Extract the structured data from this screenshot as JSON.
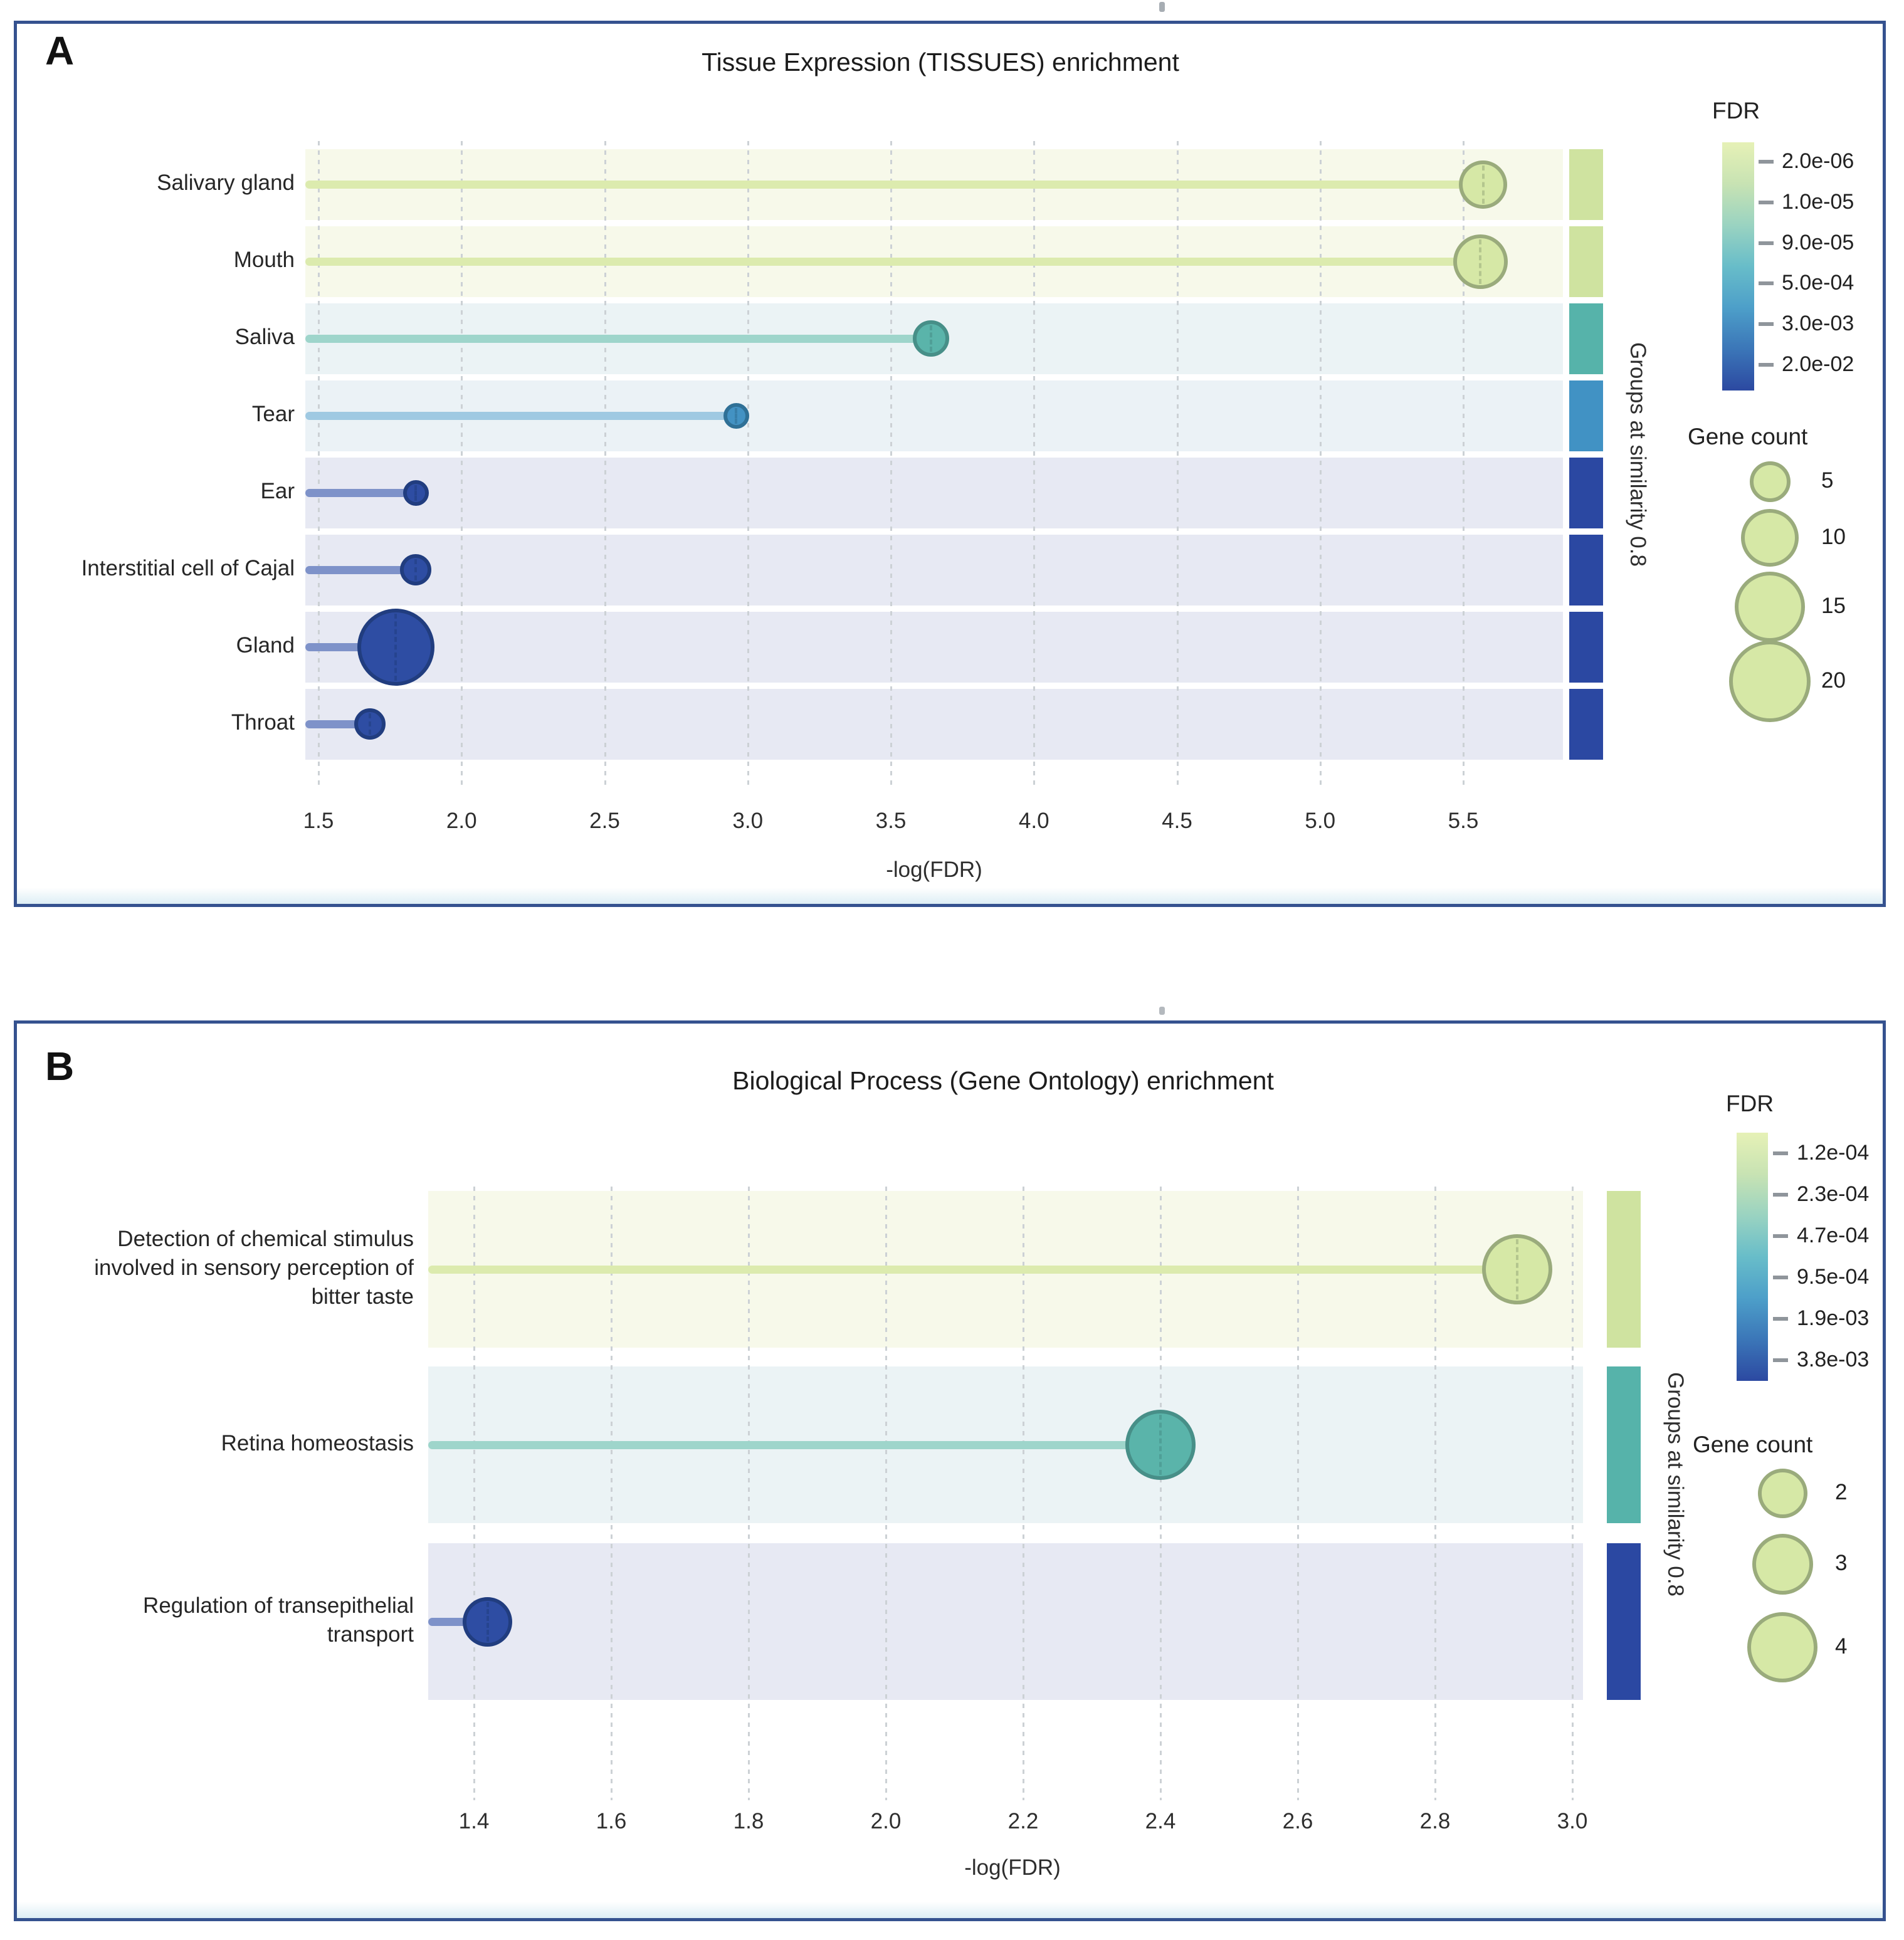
{
  "figure": {
    "panel_a_letter": "A",
    "panel_b_letter": "B"
  },
  "colors": {
    "panel_border": "#35528f",
    "grid": "#ccd1d5",
    "legend_circle_fill": "#d6e8a6",
    "legend_circle_border": "#9aab7c",
    "gradient": [
      "#e6f1b6",
      "#c8e3b3",
      "#9ad3c1",
      "#68bdc9",
      "#4d9fc9",
      "#3b76b8",
      "#2c49a1"
    ],
    "groups": {
      "green": {
        "band": "#f7f9ea",
        "stick": "#dcebae",
        "bubble_fill": "#d6e8a6",
        "bubble_border": "#9aab7c",
        "sidebar": "#cfe3a0"
      },
      "teal": {
        "band": "#ebf3f5",
        "stick": "#9ed5cb",
        "bubble_fill": "#5ab4aa",
        "bubble_border": "#478f88",
        "sidebar": "#56b3aa"
      },
      "blue_mid": {
        "band": "#ebf2f6",
        "stick": "#9fc9e2",
        "bubble_fill": "#4392c3",
        "bubble_border": "#2f7096",
        "sidebar": "#4192c4"
      },
      "blue_dark": {
        "band": "#e7e9f3",
        "stick": "#7e92c9",
        "bubble_fill": "#2e4da3",
        "bubble_border": "#213d7f",
        "sidebar": "#2b48a2"
      }
    }
  },
  "chart_data": [
    {
      "type": "lollipop",
      "panel": "A",
      "title": "Tissue Expression (TISSUES) enrichment",
      "xlabel": "-log(FDR)",
      "right_axis_label": "Groups at similarity 0.8",
      "xlim": [
        1.4,
        5.85
      ],
      "x_ticks": [
        1.5,
        2.0,
        2.5,
        3.0,
        3.5,
        4.0,
        4.5,
        5.0,
        5.5
      ],
      "x_tick_labels": [
        "1.5",
        "2.0",
        "2.5",
        "3.0",
        "3.5",
        "4.0",
        "4.5",
        "5.0",
        "5.5"
      ],
      "grid": "dotted-vertical",
      "legend_position": "right",
      "categories": [
        "Salivary gland",
        "Mouth",
        "Saliva",
        "Tear",
        "Ear",
        "Interstitial cell of Cajal",
        "Gland",
        "Throat"
      ],
      "label_lines": [
        [
          "Salivary gland"
        ],
        [
          "Mouth"
        ],
        [
          "Saliva"
        ],
        [
          "Tear"
        ],
        [
          "Ear"
        ],
        [
          "Interstitial cell of Cajal"
        ],
        [
          "Gland"
        ],
        [
          "Throat"
        ]
      ],
      "values": [
        5.57,
        5.56,
        3.64,
        2.96,
        1.84,
        1.84,
        1.77,
        1.68
      ],
      "gene_counts": [
        7,
        9,
        4,
        2,
        2,
        3,
        18,
        3
      ],
      "groups": [
        "green",
        "green",
        "teal",
        "blue_mid",
        "blue_dark",
        "blue_dark",
        "blue_dark",
        "blue_dark"
      ],
      "fdr_legend": {
        "title": "FDR",
        "labels": [
          "2.0e-06",
          "1.0e-05",
          "9.0e-05",
          "5.0e-04",
          "3.0e-03",
          "2.0e-02"
        ]
      },
      "gene_count_legend": {
        "title": "Gene count",
        "labels": [
          "5",
          "10",
          "15",
          "20"
        ],
        "counts": [
          5,
          10,
          15,
          20
        ]
      }
    },
    {
      "type": "lollipop",
      "panel": "B",
      "title": "Biological Process (Gene Ontology) enrichment",
      "xlabel": "-log(FDR)",
      "right_axis_label": "Groups at similarity 0.8",
      "xlim": [
        1.33,
        3.05
      ],
      "x_ticks": [
        1.4,
        1.6,
        1.8,
        2.0,
        2.2,
        2.4,
        2.6,
        2.8,
        3.0
      ],
      "x_tick_labels": [
        "1.4",
        "1.6",
        "1.8",
        "2.0",
        "2.2",
        "2.4",
        "2.6",
        "2.8",
        "3.0"
      ],
      "grid": "dotted-vertical",
      "legend_position": "right",
      "categories": [
        "Detection of chemical stimulus involved in sensory perception of bitter taste",
        "Retina homeostasis",
        "Regulation of transepithelial transport"
      ],
      "label_lines": [
        [
          "Detection of chemical stimulus",
          "involved in sensory perception of",
          "bitter taste"
        ],
        [
          "Retina homeostasis"
        ],
        [
          "Regulation of transepithelial",
          "transport"
        ]
      ],
      "values": [
        2.92,
        2.4,
        1.42
      ],
      "gene_counts": [
        4,
        4,
        2
      ],
      "groups": [
        "green",
        "teal",
        "blue_dark"
      ],
      "fdr_legend": {
        "title": "FDR",
        "labels": [
          "1.2e-04",
          "2.3e-04",
          "4.7e-04",
          "9.5e-04",
          "1.9e-03",
          "3.8e-03"
        ]
      },
      "gene_count_legend": {
        "title": "Gene count",
        "labels": [
          "2",
          "3",
          "4"
        ],
        "counts": [
          2,
          3,
          4
        ]
      }
    }
  ]
}
